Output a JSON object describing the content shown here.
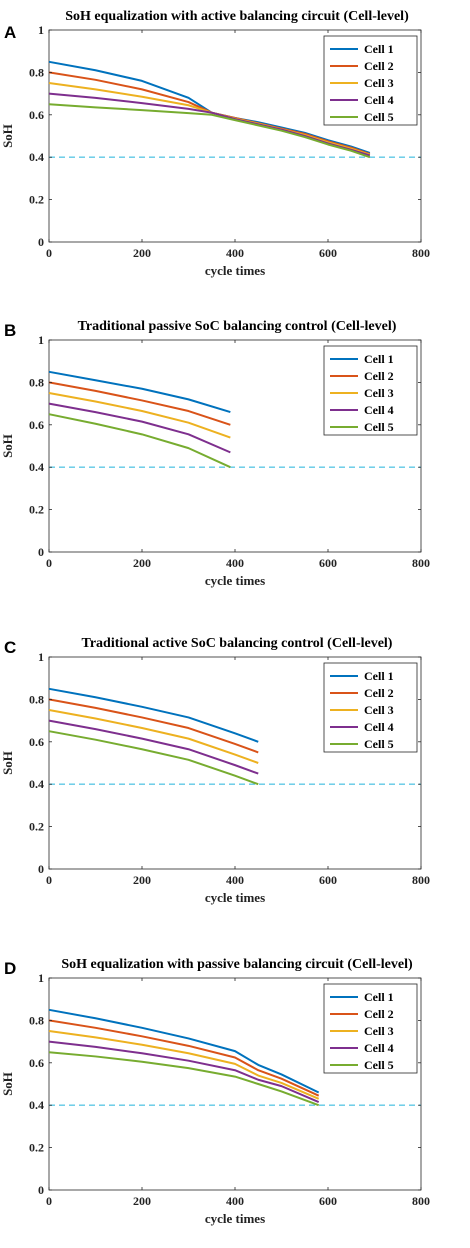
{
  "chart_data": [
    {
      "panel": "A",
      "type": "line",
      "title": "SoH equalization with active balancing circuit (Cell-level)",
      "xlabel": "cycle times",
      "ylabel": "SoH",
      "xlim": [
        0,
        800
      ],
      "ylim": [
        0,
        1
      ],
      "xticks": [
        0,
        200,
        400,
        600,
        800
      ],
      "yticks": [
        0,
        0.2,
        0.4,
        0.6,
        0.8,
        1
      ],
      "ytick_labels": [
        "0",
        "0.2",
        "0.4",
        "0.6",
        "0.8",
        "1"
      ],
      "legend_position": "top-right",
      "grid": false,
      "threshold": {
        "y": 0.4,
        "style": "dashed",
        "color": "#5ec8e5"
      },
      "series": [
        {
          "name": "Cell 1",
          "color": "#0072bd",
          "x": [
            0,
            100,
            200,
            300,
            350,
            400,
            450,
            500,
            550,
            600,
            650,
            690
          ],
          "y": [
            0.85,
            0.81,
            0.76,
            0.68,
            0.61,
            0.585,
            0.565,
            0.54,
            0.515,
            0.48,
            0.45,
            0.42
          ]
        },
        {
          "name": "Cell 2",
          "color": "#d95319",
          "x": [
            0,
            100,
            200,
            300,
            350,
            400,
            450,
            500,
            550,
            600,
            650,
            690
          ],
          "y": [
            0.8,
            0.765,
            0.72,
            0.66,
            0.61,
            0.585,
            0.56,
            0.535,
            0.51,
            0.475,
            0.445,
            0.415
          ]
        },
        {
          "name": "Cell 3",
          "color": "#edb120",
          "x": [
            0,
            100,
            200,
            300,
            350,
            400,
            450,
            500,
            550,
            600,
            650,
            690
          ],
          "y": [
            0.75,
            0.72,
            0.685,
            0.645,
            0.61,
            0.582,
            0.558,
            0.532,
            0.505,
            0.47,
            0.44,
            0.412
          ]
        },
        {
          "name": "Cell 4",
          "color": "#7e2f8e",
          "x": [
            0,
            100,
            200,
            300,
            350,
            400,
            450,
            500,
            550,
            600,
            650,
            690
          ],
          "y": [
            0.7,
            0.68,
            0.655,
            0.628,
            0.61,
            0.58,
            0.555,
            0.53,
            0.5,
            0.465,
            0.435,
            0.408
          ]
        },
        {
          "name": "Cell 5",
          "color": "#77ac30",
          "x": [
            0,
            100,
            200,
            300,
            350,
            400,
            450,
            500,
            550,
            600,
            650,
            690
          ],
          "y": [
            0.65,
            0.635,
            0.622,
            0.608,
            0.6,
            0.575,
            0.55,
            0.525,
            0.495,
            0.46,
            0.43,
            0.4
          ]
        }
      ]
    },
    {
      "panel": "B",
      "type": "line",
      "title": "Traditional passive SoC balancing control (Cell-level)",
      "xlabel": "cycle times",
      "ylabel": "SoH",
      "xlim": [
        0,
        800
      ],
      "ylim": [
        0,
        1
      ],
      "xticks": [
        0,
        200,
        400,
        600,
        800
      ],
      "yticks": [
        0,
        0.2,
        0.4,
        0.6,
        0.8,
        1
      ],
      "ytick_labels": [
        "0",
        "0.2",
        "0.4",
        "0.6",
        "0.8",
        "1"
      ],
      "legend_position": "top-right",
      "grid": false,
      "threshold": {
        "y": 0.4,
        "style": "dashed",
        "color": "#5ec8e5"
      },
      "series": [
        {
          "name": "Cell 1",
          "color": "#0072bd",
          "x": [
            0,
            100,
            200,
            300,
            390
          ],
          "y": [
            0.85,
            0.81,
            0.77,
            0.72,
            0.66
          ]
        },
        {
          "name": "Cell 2",
          "color": "#d95319",
          "x": [
            0,
            100,
            200,
            300,
            390
          ],
          "y": [
            0.8,
            0.76,
            0.715,
            0.665,
            0.6
          ]
        },
        {
          "name": "Cell 3",
          "color": "#edb120",
          "x": [
            0,
            100,
            200,
            300,
            390
          ],
          "y": [
            0.75,
            0.71,
            0.665,
            0.61,
            0.54
          ]
        },
        {
          "name": "Cell 4",
          "color": "#7e2f8e",
          "x": [
            0,
            100,
            200,
            300,
            390
          ],
          "y": [
            0.7,
            0.66,
            0.615,
            0.555,
            0.47
          ]
        },
        {
          "name": "Cell 5",
          "color": "#77ac30",
          "x": [
            0,
            100,
            200,
            300,
            390
          ],
          "y": [
            0.65,
            0.605,
            0.555,
            0.49,
            0.4
          ]
        }
      ]
    },
    {
      "panel": "C",
      "type": "line",
      "title": "Traditional active SoC balancing control (Cell-level)",
      "xlabel": "cycle times",
      "ylabel": "SoH",
      "xlim": [
        0,
        800
      ],
      "ylim": [
        0,
        1
      ],
      "xticks": [
        0,
        200,
        400,
        600,
        800
      ],
      "yticks": [
        0,
        0.2,
        0.4,
        0.6,
        0.8,
        1
      ],
      "ytick_labels": [
        "0",
        "0.2",
        "0.4",
        "0.6",
        "0.8",
        "1"
      ],
      "legend_position": "top-right",
      "grid": false,
      "threshold": {
        "y": 0.4,
        "style": "dashed",
        "color": "#5ec8e5"
      },
      "series": [
        {
          "name": "Cell 1",
          "color": "#0072bd",
          "x": [
            0,
            100,
            200,
            300,
            400,
            450
          ],
          "y": [
            0.85,
            0.81,
            0.765,
            0.715,
            0.64,
            0.6
          ]
        },
        {
          "name": "Cell 2",
          "color": "#d95319",
          "x": [
            0,
            100,
            200,
            300,
            400,
            450
          ],
          "y": [
            0.8,
            0.76,
            0.715,
            0.665,
            0.59,
            0.55
          ]
        },
        {
          "name": "Cell 3",
          "color": "#edb120",
          "x": [
            0,
            100,
            200,
            300,
            400,
            450
          ],
          "y": [
            0.75,
            0.71,
            0.665,
            0.615,
            0.54,
            0.5
          ]
        },
        {
          "name": "Cell 4",
          "color": "#7e2f8e",
          "x": [
            0,
            100,
            200,
            300,
            400,
            450
          ],
          "y": [
            0.7,
            0.66,
            0.615,
            0.565,
            0.49,
            0.45
          ]
        },
        {
          "name": "Cell 5",
          "color": "#77ac30",
          "x": [
            0,
            100,
            200,
            300,
            400,
            450
          ],
          "y": [
            0.65,
            0.61,
            0.565,
            0.515,
            0.44,
            0.4
          ]
        }
      ]
    },
    {
      "panel": "D",
      "type": "line",
      "title": "SoH equalization with passive balancing circuit (Cell-level)",
      "xlabel": "cycle times",
      "ylabel": "SoH",
      "xlim": [
        0,
        800
      ],
      "ylim": [
        0,
        1
      ],
      "xticks": [
        0,
        200,
        400,
        600,
        800
      ],
      "yticks": [
        0,
        0.2,
        0.4,
        0.6,
        0.8,
        1
      ],
      "ytick_labels": [
        "0",
        "0.2",
        "0.4",
        "0.6",
        "0.8",
        "1"
      ],
      "legend_position": "top-right",
      "grid": false,
      "threshold": {
        "y": 0.4,
        "style": "dashed",
        "color": "#5ec8e5"
      },
      "series": [
        {
          "name": "Cell 1",
          "color": "#0072bd",
          "x": [
            0,
            100,
            200,
            300,
            400,
            450,
            500,
            580
          ],
          "y": [
            0.85,
            0.81,
            0.765,
            0.715,
            0.655,
            0.59,
            0.545,
            0.46
          ]
        },
        {
          "name": "Cell 2",
          "color": "#d95319",
          "x": [
            0,
            100,
            200,
            300,
            400,
            450,
            500,
            580
          ],
          "y": [
            0.8,
            0.765,
            0.725,
            0.68,
            0.625,
            0.565,
            0.525,
            0.445
          ]
        },
        {
          "name": "Cell 3",
          "color": "#edb120",
          "x": [
            0,
            100,
            200,
            300,
            400,
            450,
            500,
            580
          ],
          "y": [
            0.75,
            0.72,
            0.685,
            0.645,
            0.595,
            0.54,
            0.505,
            0.43
          ]
        },
        {
          "name": "Cell 4",
          "color": "#7e2f8e",
          "x": [
            0,
            100,
            200,
            300,
            400,
            450,
            500,
            580
          ],
          "y": [
            0.7,
            0.675,
            0.645,
            0.61,
            0.565,
            0.52,
            0.49,
            0.415
          ]
        },
        {
          "name": "Cell 5",
          "color": "#77ac30",
          "x": [
            0,
            100,
            200,
            300,
            400,
            450,
            500,
            580
          ],
          "y": [
            0.65,
            0.63,
            0.605,
            0.575,
            0.535,
            0.5,
            0.465,
            0.4
          ]
        }
      ]
    }
  ]
}
